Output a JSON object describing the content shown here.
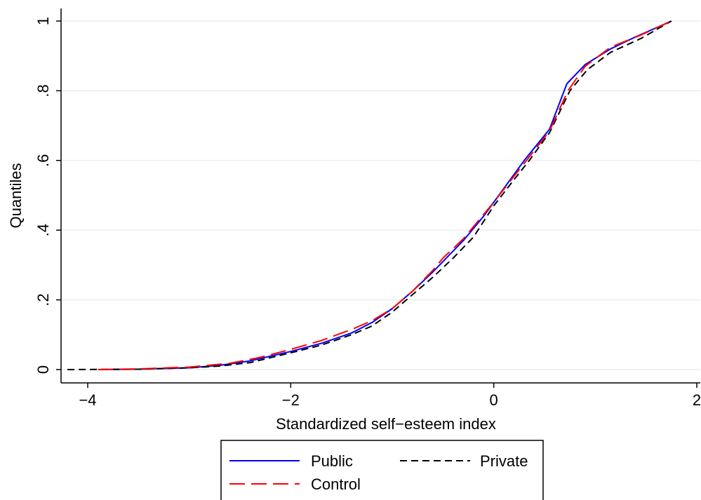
{
  "chart_data": {
    "type": "line",
    "title": "",
    "xlabel": "Standardized self−esteem index",
    "ylabel": "Quantiles",
    "xlim": [
      -4.2,
      2
    ],
    "ylim": [
      -0.04,
      1.04
    ],
    "x_ticks": [
      -4,
      -2,
      0,
      2
    ],
    "x_tick_labels": [
      "−4",
      "−2",
      "0",
      "2"
    ],
    "y_ticks": [
      0,
      0.2,
      0.4,
      0.6,
      0.8,
      1
    ],
    "y_tick_labels": [
      "0",
      ".2",
      ".4",
      ".6",
      ".8",
      "1"
    ],
    "grid": "horizontal",
    "legend_position": "bottom",
    "series": [
      {
        "name": "Public",
        "color": "#0000ff",
        "dash": "solid",
        "points": [
          [
            -3.9,
            0
          ],
          [
            -3.5,
            0.001
          ],
          [
            -3.0,
            0.005
          ],
          [
            -2.7,
            0.012
          ],
          [
            -2.4,
            0.025
          ],
          [
            -2.0,
            0.052
          ],
          [
            -1.7,
            0.075
          ],
          [
            -1.4,
            0.105
          ],
          [
            -1.2,
            0.135
          ],
          [
            -1.0,
            0.175
          ],
          [
            -0.8,
            0.225
          ],
          [
            -0.6,
            0.28
          ],
          [
            -0.5,
            0.31
          ],
          [
            -0.3,
            0.37
          ],
          [
            -0.1,
            0.44
          ],
          [
            0.0,
            0.48
          ],
          [
            0.2,
            0.56
          ],
          [
            0.3,
            0.6
          ],
          [
            0.55,
            0.69
          ],
          [
            0.72,
            0.82
          ],
          [
            0.9,
            0.875
          ],
          [
            1.15,
            0.92
          ],
          [
            1.4,
            0.955
          ],
          [
            1.75,
            1.0
          ]
        ]
      },
      {
        "name": "Private",
        "color": "#000000",
        "dash": "short",
        "points": [
          [
            -4.2,
            0
          ],
          [
            -3.5,
            0.001
          ],
          [
            -3.0,
            0.005
          ],
          [
            -2.7,
            0.01
          ],
          [
            -2.4,
            0.02
          ],
          [
            -2.0,
            0.048
          ],
          [
            -1.7,
            0.07
          ],
          [
            -1.4,
            0.1
          ],
          [
            -1.2,
            0.125
          ],
          [
            -1.0,
            0.165
          ],
          [
            -0.8,
            0.215
          ],
          [
            -0.6,
            0.265
          ],
          [
            -0.4,
            0.32
          ],
          [
            -0.2,
            0.38
          ],
          [
            0.0,
            0.47
          ],
          [
            0.2,
            0.545
          ],
          [
            0.35,
            0.6
          ],
          [
            0.55,
            0.68
          ],
          [
            0.75,
            0.8
          ],
          [
            0.92,
            0.86
          ],
          [
            1.15,
            0.91
          ],
          [
            1.45,
            0.95
          ],
          [
            1.75,
            1.0
          ]
        ]
      },
      {
        "name": "Control",
        "color": "#ff0000",
        "dash": "long",
        "points": [
          [
            -3.9,
            0
          ],
          [
            -3.5,
            0.002
          ],
          [
            -3.0,
            0.007
          ],
          [
            -2.6,
            0.018
          ],
          [
            -2.3,
            0.035
          ],
          [
            -2.0,
            0.058
          ],
          [
            -1.7,
            0.083
          ],
          [
            -1.4,
            0.115
          ],
          [
            -1.2,
            0.14
          ],
          [
            -1.0,
            0.175
          ],
          [
            -0.8,
            0.225
          ],
          [
            -0.6,
            0.285
          ],
          [
            -0.5,
            0.32
          ],
          [
            -0.3,
            0.375
          ],
          [
            -0.1,
            0.445
          ],
          [
            0.0,
            0.48
          ],
          [
            0.2,
            0.555
          ],
          [
            0.35,
            0.61
          ],
          [
            0.55,
            0.685
          ],
          [
            0.73,
            0.8
          ],
          [
            0.9,
            0.87
          ],
          [
            1.15,
            0.925
          ],
          [
            1.45,
            0.96
          ],
          [
            1.75,
            1.0
          ]
        ]
      }
    ],
    "legend": {
      "rows": [
        [
          "Public",
          "Private"
        ],
        [
          "Control"
        ]
      ]
    }
  }
}
